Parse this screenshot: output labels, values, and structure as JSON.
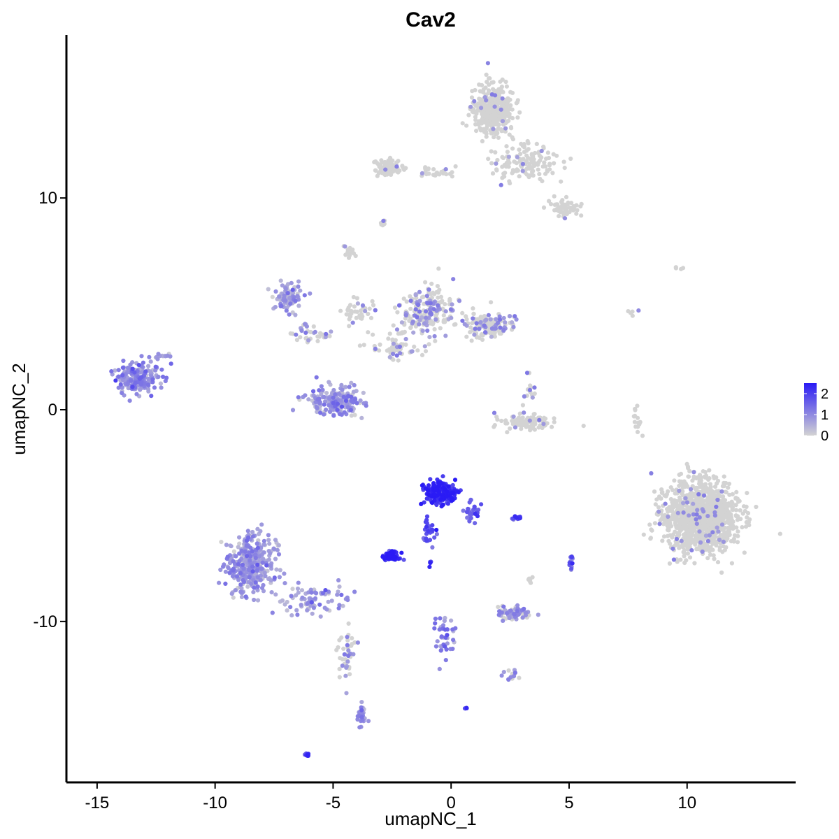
{
  "chart_data": {
    "type": "scatter",
    "title": "Cav2",
    "xlabel": "umapNC_1",
    "ylabel": "umapNC_2",
    "xlim": [
      -16.3,
      14.6
    ],
    "ylim": [
      -17.6,
      17.7
    ],
    "x_ticks": [
      -15,
      -10,
      -5,
      0,
      5,
      10
    ],
    "x_tick_labels": [
      "-15",
      "-10",
      "-5",
      "0",
      "5",
      "10"
    ],
    "y_ticks": [
      -10,
      0,
      10
    ],
    "y_tick_labels": [
      "-10",
      "0",
      "10"
    ],
    "grid": false,
    "color_scale": {
      "low_color": "#d3d3d3",
      "high_color": "#2a1bf5",
      "min": 0,
      "max": 2.5,
      "ticks": [
        0,
        1,
        2
      ],
      "tick_labels": [
        "0",
        "1",
        "2"
      ],
      "legend_position": "right"
    },
    "clusters": [
      {
        "center": [
          -13.3,
          1.5
        ],
        "spread": [
          0.85,
          0.55
        ],
        "n": 200,
        "expression": 0.9
      },
      {
        "center": [
          -12.2,
          2.6
        ],
        "spread": [
          0.3,
          0.2
        ],
        "n": 12,
        "expression": 0.8
      },
      {
        "center": [
          -6.9,
          5.3
        ],
        "spread": [
          0.45,
          0.55
        ],
        "n": 90,
        "expression": 0.6
      },
      {
        "center": [
          -6.0,
          3.6
        ],
        "spread": [
          0.8,
          0.4
        ],
        "n": 35,
        "expression": 0.3
      },
      {
        "center": [
          -4.9,
          0.4
        ],
        "spread": [
          1.0,
          0.6
        ],
        "n": 200,
        "expression": 0.7
      },
      {
        "center": [
          -4.3,
          7.5
        ],
        "spread": [
          0.25,
          0.35
        ],
        "n": 15,
        "expression": 0.1
      },
      {
        "center": [
          -3.9,
          4.6
        ],
        "spread": [
          0.7,
          0.5
        ],
        "n": 40,
        "expression": 0.1
      },
      {
        "center": [
          -2.4,
          3.0
        ],
        "spread": [
          0.9,
          0.7
        ],
        "n": 60,
        "expression": 0.15
      },
      {
        "center": [
          -1.0,
          4.6
        ],
        "spread": [
          0.9,
          0.9
        ],
        "n": 200,
        "expression": 0.2
      },
      {
        "center": [
          1.5,
          4.0
        ],
        "spread": [
          0.85,
          0.5
        ],
        "n": 160,
        "expression": 0.2
      },
      {
        "center": [
          -2.6,
          11.4
        ],
        "spread": [
          0.55,
          0.35
        ],
        "n": 80,
        "expression": 0.05
      },
      {
        "center": [
          -0.6,
          11.2
        ],
        "spread": [
          0.9,
          0.2
        ],
        "n": 25,
        "expression": 0.05
      },
      {
        "center": [
          1.8,
          14.1
        ],
        "spread": [
          0.7,
          1.0
        ],
        "n": 350,
        "expression": 0.05
      },
      {
        "center": [
          3.1,
          11.6
        ],
        "spread": [
          1.1,
          0.7
        ],
        "n": 130,
        "expression": 0.03
      },
      {
        "center": [
          4.8,
          9.5
        ],
        "spread": [
          0.6,
          0.4
        ],
        "n": 50,
        "expression": 0.03
      },
      {
        "center": [
          -2.9,
          8.8
        ],
        "spread": [
          0.15,
          0.2
        ],
        "n": 8,
        "expression": 0.2
      },
      {
        "center": [
          3.3,
          -0.6
        ],
        "spread": [
          0.9,
          0.3
        ],
        "n": 100,
        "expression": 0.05
      },
      {
        "center": [
          3.3,
          0.8
        ],
        "spread": [
          0.2,
          0.6
        ],
        "n": 15,
        "expression": 0.2
      },
      {
        "center": [
          -0.5,
          -3.9
        ],
        "spread": [
          0.55,
          0.45
        ],
        "n": 200,
        "expression": 2.2
      },
      {
        "center": [
          0.9,
          -4.8
        ],
        "spread": [
          0.25,
          0.4
        ],
        "n": 30,
        "expression": 1.6
      },
      {
        "center": [
          -0.9,
          -5.6
        ],
        "spread": [
          0.25,
          0.6
        ],
        "n": 25,
        "expression": 1.9
      },
      {
        "center": [
          -2.5,
          -6.9
        ],
        "spread": [
          0.35,
          0.18
        ],
        "n": 70,
        "expression": 2.1
      },
      {
        "center": [
          2.8,
          -5.1
        ],
        "spread": [
          0.2,
          0.08
        ],
        "n": 12,
        "expression": 1.8
      },
      {
        "center": [
          5.1,
          -7.3
        ],
        "spread": [
          0.08,
          0.4
        ],
        "n": 12,
        "expression": 1.5
      },
      {
        "center": [
          -0.9,
          -7.3
        ],
        "spread": [
          0.05,
          0.1
        ],
        "n": 4,
        "expression": 2.0
      },
      {
        "center": [
          -8.5,
          -7.3
        ],
        "spread": [
          0.8,
          1.1
        ],
        "n": 350,
        "expression": 0.7
      },
      {
        "center": [
          -6.0,
          -9.0
        ],
        "spread": [
          1.3,
          0.6
        ],
        "n": 80,
        "expression": 0.7
      },
      {
        "center": [
          -4.4,
          -11.6
        ],
        "spread": [
          0.3,
          1.0
        ],
        "n": 40,
        "expression": 0.2
      },
      {
        "center": [
          -3.8,
          -14.4
        ],
        "spread": [
          0.15,
          0.5
        ],
        "n": 25,
        "expression": 0.9
      },
      {
        "center": [
          -6.1,
          -16.3
        ],
        "spread": [
          0.1,
          0.05
        ],
        "n": 8,
        "expression": 2.0
      },
      {
        "center": [
          -0.3,
          -10.7
        ],
        "spread": [
          0.35,
          1.0
        ],
        "n": 40,
        "expression": 1.1
      },
      {
        "center": [
          2.6,
          -9.6
        ],
        "spread": [
          0.55,
          0.25
        ],
        "n": 60,
        "expression": 0.45
      },
      {
        "center": [
          2.5,
          -12.5
        ],
        "spread": [
          0.35,
          0.2
        ],
        "n": 15,
        "expression": 0.4
      },
      {
        "center": [
          0.6,
          -14.1
        ],
        "spread": [
          0.05,
          0.05
        ],
        "n": 4,
        "expression": 1.8
      },
      {
        "center": [
          3.3,
          -8.0
        ],
        "spread": [
          0.15,
          0.2
        ],
        "n": 6,
        "expression": 0.05
      },
      {
        "center": [
          10.6,
          -5.1
        ],
        "spread": [
          1.3,
          1.4
        ],
        "n": 1100,
        "expression": 0.03
      },
      {
        "center": [
          7.9,
          -0.5
        ],
        "spread": [
          0.15,
          0.7
        ],
        "n": 15,
        "expression": 0.02
      },
      {
        "center": [
          9.7,
          6.7
        ],
        "spread": [
          0.25,
          0.1
        ],
        "n": 4,
        "expression": 0.02
      },
      {
        "center": [
          7.7,
          4.6
        ],
        "spread": [
          0.2,
          0.4
        ],
        "n": 5,
        "expression": 0.02
      }
    ]
  }
}
